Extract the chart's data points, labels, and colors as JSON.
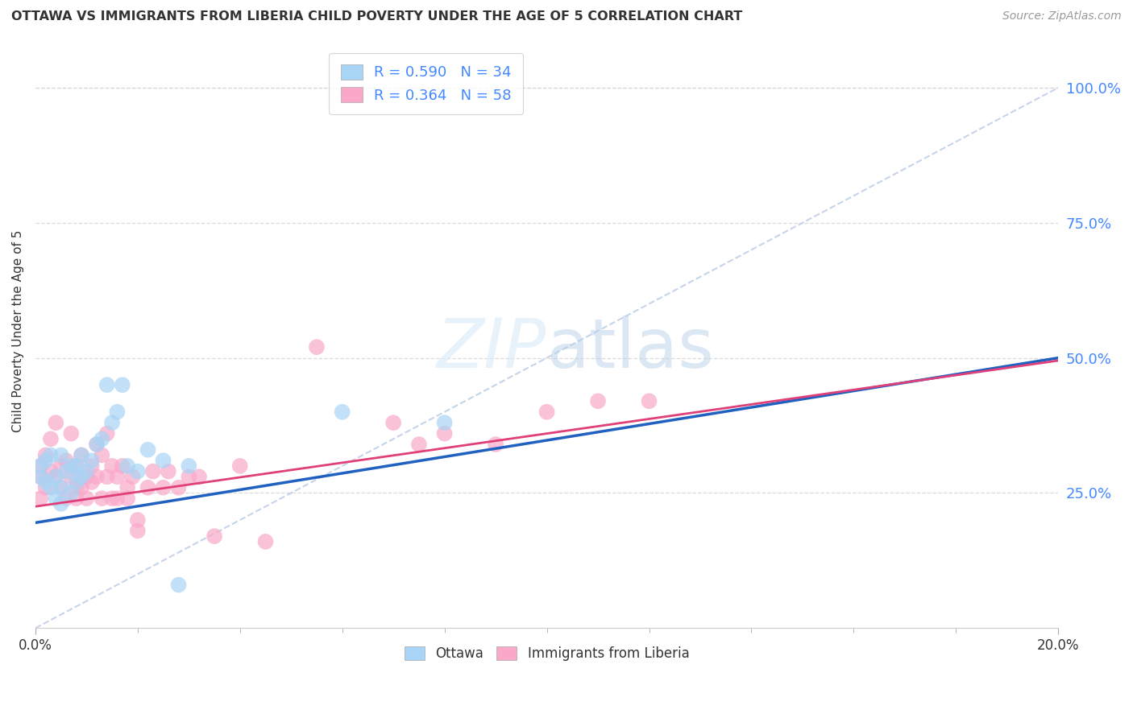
{
  "title": "OTTAWA VS IMMIGRANTS FROM LIBERIA CHILD POVERTY UNDER THE AGE OF 5 CORRELATION CHART",
  "source": "Source: ZipAtlas.com",
  "ylabel": "Child Poverty Under the Age of 5",
  "ytick_labels": [
    "100.0%",
    "75.0%",
    "50.0%",
    "25.0%"
  ],
  "ytick_values": [
    1.0,
    0.75,
    0.5,
    0.25
  ],
  "xlim": [
    0.0,
    0.2
  ],
  "ylim": [
    0.0,
    1.1
  ],
  "ottawa_R": 0.59,
  "ottawa_N": 34,
  "liberia_R": 0.364,
  "liberia_N": 58,
  "ottawa_color": "#a8d4f5",
  "liberia_color": "#f9a8c9",
  "ottawa_line_color": "#2060c0",
  "liberia_line_color": "#e0407a",
  "diagonal_color": "#c0d0e8",
  "background_color": "#ffffff",
  "grid_color": "#d8d8d8",
  "ottawa_line_x0": 0.0,
  "ottawa_line_y0": 0.195,
  "ottawa_line_x1": 0.2,
  "ottawa_line_y1": 0.5,
  "liberia_line_x0": 0.0,
  "liberia_line_y0": 0.225,
  "liberia_line_x1": 0.2,
  "liberia_line_y1": 0.495,
  "ottawa_points_x": [
    0.001,
    0.001,
    0.002,
    0.002,
    0.003,
    0.003,
    0.004,
    0.004,
    0.005,
    0.005,
    0.005,
    0.006,
    0.007,
    0.007,
    0.008,
    0.008,
    0.009,
    0.009,
    0.01,
    0.011,
    0.012,
    0.013,
    0.014,
    0.015,
    0.016,
    0.017,
    0.018,
    0.02,
    0.022,
    0.025,
    0.03,
    0.06,
    0.08,
    0.028
  ],
  "ottawa_points_y": [
    0.28,
    0.3,
    0.31,
    0.27,
    0.32,
    0.26,
    0.28,
    0.24,
    0.32,
    0.26,
    0.23,
    0.29,
    0.3,
    0.25,
    0.3,
    0.27,
    0.32,
    0.28,
    0.29,
    0.31,
    0.34,
    0.35,
    0.45,
    0.38,
    0.4,
    0.45,
    0.3,
    0.29,
    0.33,
    0.31,
    0.3,
    0.4,
    0.38,
    0.08
  ],
  "liberia_points_x": [
    0.001,
    0.001,
    0.001,
    0.002,
    0.002,
    0.003,
    0.003,
    0.004,
    0.004,
    0.005,
    0.005,
    0.006,
    0.006,
    0.007,
    0.007,
    0.008,
    0.008,
    0.008,
    0.009,
    0.009,
    0.01,
    0.01,
    0.011,
    0.011,
    0.012,
    0.012,
    0.013,
    0.013,
    0.014,
    0.014,
    0.015,
    0.015,
    0.016,
    0.016,
    0.017,
    0.018,
    0.018,
    0.019,
    0.02,
    0.02,
    0.022,
    0.023,
    0.025,
    0.026,
    0.028,
    0.03,
    0.032,
    0.035,
    0.04,
    0.045,
    0.07,
    0.075,
    0.08,
    0.09,
    0.1,
    0.11,
    0.12,
    0.055
  ],
  "liberia_points_y": [
    0.24,
    0.28,
    0.3,
    0.26,
    0.32,
    0.29,
    0.35,
    0.28,
    0.38,
    0.26,
    0.3,
    0.31,
    0.24,
    0.28,
    0.36,
    0.26,
    0.3,
    0.24,
    0.32,
    0.26,
    0.28,
    0.24,
    0.3,
    0.27,
    0.34,
    0.28,
    0.32,
    0.24,
    0.36,
    0.28,
    0.3,
    0.24,
    0.28,
    0.24,
    0.3,
    0.26,
    0.24,
    0.28,
    0.2,
    0.18,
    0.26,
    0.29,
    0.26,
    0.29,
    0.26,
    0.28,
    0.28,
    0.17,
    0.3,
    0.16,
    0.38,
    0.34,
    0.36,
    0.34,
    0.4,
    0.42,
    0.42,
    0.52
  ]
}
